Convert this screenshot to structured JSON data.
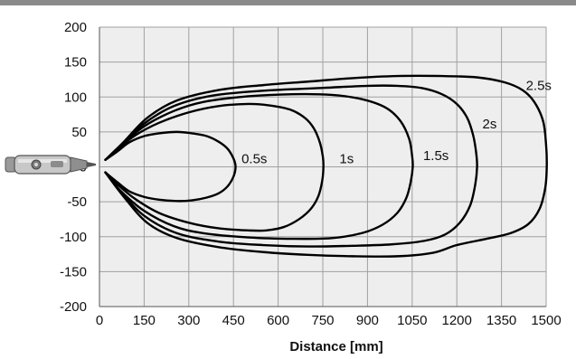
{
  "chart_data": {
    "type": "line",
    "title": "",
    "xlabel": "Distance [mm]",
    "ylabel": "",
    "xlim": [
      0,
      1500
    ],
    "ylim": [
      -200,
      200
    ],
    "grid": true,
    "line_color": "#000000",
    "grid_color": "#a0a0a0",
    "plot_background": "#eeeeee",
    "x_ticks": [
      "0",
      "150",
      "300",
      "450",
      "600",
      "750",
      "900",
      "1050",
      "1200",
      "1350",
      "1500"
    ],
    "y_ticks": [
      "200",
      "150",
      "100",
      "50",
      "0",
      "-50",
      "-100",
      "-150",
      "-200"
    ],
    "series": [
      {
        "name": "0.5s",
        "points": [
          [
            20,
            10
          ],
          [
            60,
            22
          ],
          [
            100,
            35
          ],
          [
            150,
            44
          ],
          [
            200,
            48
          ],
          [
            260,
            50
          ],
          [
            310,
            48
          ],
          [
            360,
            44
          ],
          [
            400,
            36
          ],
          [
            430,
            26
          ],
          [
            450,
            12
          ],
          [
            457,
            0
          ],
          [
            450,
            -14
          ],
          [
            430,
            -28
          ],
          [
            400,
            -38
          ],
          [
            360,
            -44
          ],
          [
            310,
            -48
          ],
          [
            260,
            -49
          ],
          [
            200,
            -47
          ],
          [
            150,
            -43
          ],
          [
            100,
            -35
          ],
          [
            60,
            -22
          ],
          [
            20,
            -8
          ]
        ]
      },
      {
        "name": "1s",
        "points": [
          [
            20,
            10
          ],
          [
            60,
            25
          ],
          [
            120,
            45
          ],
          [
            200,
            63
          ],
          [
            300,
            78
          ],
          [
            400,
            87
          ],
          [
            500,
            90
          ],
          [
            570,
            88
          ],
          [
            640,
            82
          ],
          [
            690,
            70
          ],
          [
            720,
            55
          ],
          [
            740,
            35
          ],
          [
            750,
            15
          ],
          [
            752,
            0
          ],
          [
            748,
            -20
          ],
          [
            735,
            -42
          ],
          [
            710,
            -60
          ],
          [
            670,
            -75
          ],
          [
            620,
            -86
          ],
          [
            560,
            -91
          ],
          [
            500,
            -91
          ],
          [
            400,
            -88
          ],
          [
            300,
            -80
          ],
          [
            200,
            -66
          ],
          [
            120,
            -46
          ],
          [
            60,
            -25
          ],
          [
            20,
            -8
          ]
        ]
      },
      {
        "name": "1.5s",
        "points": [
          [
            20,
            10
          ],
          [
            70,
            30
          ],
          [
            150,
            58
          ],
          [
            250,
            80
          ],
          [
            350,
            93
          ],
          [
            500,
            101
          ],
          [
            650,
            104
          ],
          [
            780,
            103
          ],
          [
            880,
            97
          ],
          [
            960,
            85
          ],
          [
            1010,
            66
          ],
          [
            1040,
            40
          ],
          [
            1050,
            15
          ],
          [
            1052,
            0
          ],
          [
            1045,
            -22
          ],
          [
            1030,
            -45
          ],
          [
            1000,
            -66
          ],
          [
            950,
            -83
          ],
          [
            880,
            -95
          ],
          [
            780,
            -102
          ],
          [
            650,
            -103
          ],
          [
            500,
            -101
          ],
          [
            350,
            -95
          ],
          [
            250,
            -85
          ],
          [
            150,
            -63
          ],
          [
            70,
            -34
          ],
          [
            20,
            -8
          ]
        ]
      },
      {
        "name": "2s",
        "points": [
          [
            20,
            10
          ],
          [
            70,
            30
          ],
          [
            150,
            62
          ],
          [
            250,
            87
          ],
          [
            380,
            102
          ],
          [
            550,
            109
          ],
          [
            750,
            113
          ],
          [
            900,
            116
          ],
          [
            1000,
            116
          ],
          [
            1080,
            113
          ],
          [
            1150,
            104
          ],
          [
            1200,
            90
          ],
          [
            1235,
            70
          ],
          [
            1255,
            45
          ],
          [
            1265,
            20
          ],
          [
            1268,
            0
          ],
          [
            1262,
            -25
          ],
          [
            1245,
            -55
          ],
          [
            1210,
            -80
          ],
          [
            1160,
            -97
          ],
          [
            1090,
            -106
          ],
          [
            980,
            -111
          ],
          [
            850,
            -113
          ],
          [
            700,
            -114
          ],
          [
            550,
            -112
          ],
          [
            400,
            -107
          ],
          [
            260,
            -95
          ],
          [
            150,
            -70
          ],
          [
            70,
            -35
          ],
          [
            20,
            -8
          ]
        ]
      },
      {
        "name": "2.5s",
        "points": [
          [
            20,
            10
          ],
          [
            80,
            35
          ],
          [
            160,
            70
          ],
          [
            260,
            95
          ],
          [
            400,
            110
          ],
          [
            550,
            117
          ],
          [
            700,
            122
          ],
          [
            850,
            127
          ],
          [
            1000,
            130
          ],
          [
            1150,
            130
          ],
          [
            1270,
            128
          ],
          [
            1360,
            121
          ],
          [
            1420,
            110
          ],
          [
            1460,
            93
          ],
          [
            1490,
            65
          ],
          [
            1500,
            30
          ],
          [
            1502,
            0
          ],
          [
            1497,
            -30
          ],
          [
            1478,
            -60
          ],
          [
            1440,
            -82
          ],
          [
            1380,
            -95
          ],
          [
            1300,
            -103
          ],
          [
            1200,
            -112
          ],
          [
            1120,
            -123
          ],
          [
            1000,
            -128
          ],
          [
            850,
            -128
          ],
          [
            700,
            -126
          ],
          [
            550,
            -122
          ],
          [
            400,
            -115
          ],
          [
            260,
            -102
          ],
          [
            160,
            -80
          ],
          [
            80,
            -42
          ],
          [
            20,
            -8
          ]
        ]
      }
    ],
    "annotations": [
      {
        "text": "0.5s",
        "x": 520,
        "y": 5
      },
      {
        "text": "1s",
        "x": 830,
        "y": 5
      },
      {
        "text": "1.5s",
        "x": 1130,
        "y": 10
      },
      {
        "text": "2s",
        "x": 1310,
        "y": 55
      },
      {
        "text": "2.5s",
        "x": 1475,
        "y": 110
      }
    ]
  }
}
